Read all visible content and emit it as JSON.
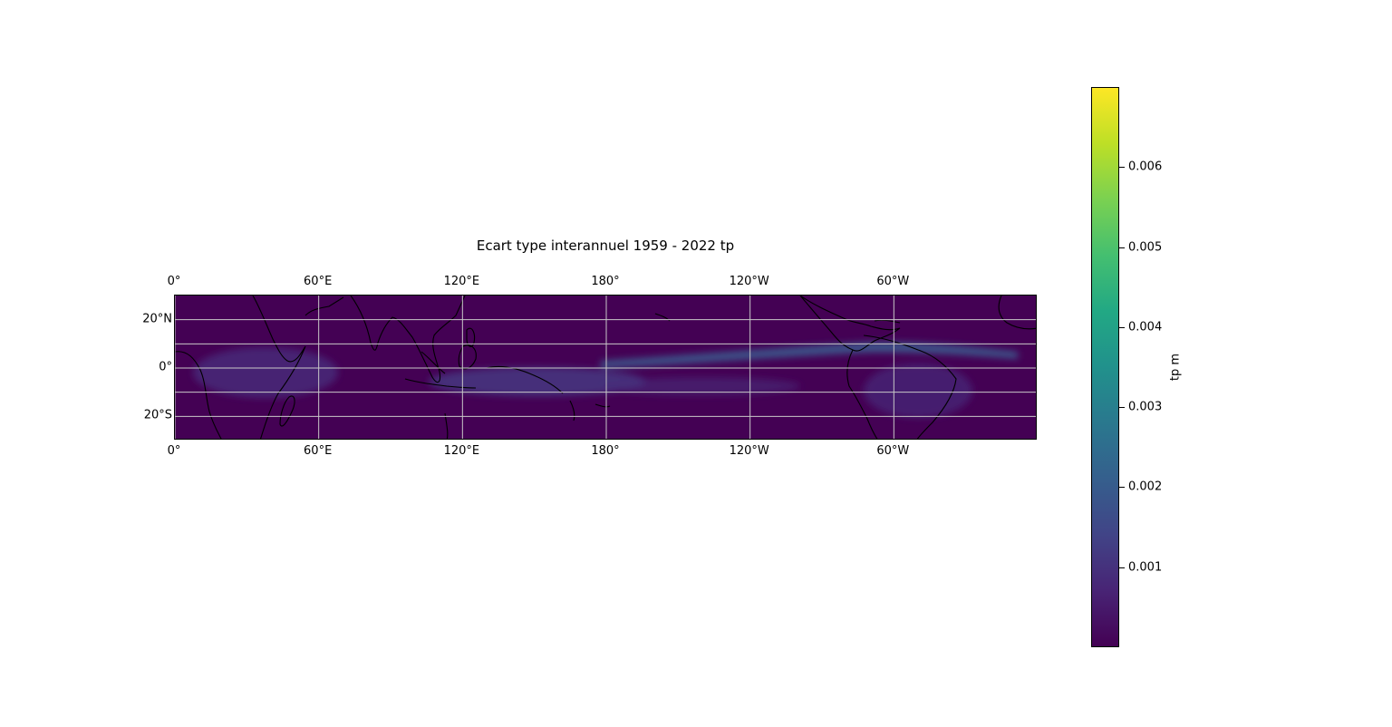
{
  "title": "Ecart type interannuel 1959 - 2022 tp",
  "map": {
    "projection": "PlateCarree",
    "lon_range": [
      0,
      360
    ],
    "lat_range": [
      -30,
      30
    ],
    "lon_ticks": [
      {
        "value": 0,
        "label": "0°"
      },
      {
        "value": 60,
        "label": "60°E"
      },
      {
        "value": 120,
        "label": "120°E"
      },
      {
        "value": 180,
        "label": "180°"
      },
      {
        "value": 240,
        "label": "120°W"
      },
      {
        "value": 300,
        "label": "60°W"
      }
    ],
    "lat_ticks": [
      {
        "value": 20,
        "label": "20°N"
      },
      {
        "value": 0,
        "label": "0°"
      },
      {
        "value": -20,
        "label": "20°S"
      }
    ],
    "gridline_lats": [
      20,
      10,
      0,
      -10,
      -20
    ],
    "gridline_color": "#c8c8c8",
    "coastline_color": "#000000",
    "colormap": "viridis",
    "base_color": "#440154",
    "itcz_color": "#3b5a8c"
  },
  "colorbar": {
    "label": "tp m",
    "min": 0,
    "max": 0.007,
    "ticks": [
      {
        "value": 0.001,
        "label": "0.001"
      },
      {
        "value": 0.002,
        "label": "0.002"
      },
      {
        "value": 0.003,
        "label": "0.003"
      },
      {
        "value": 0.004,
        "label": "0.004"
      },
      {
        "value": 0.005,
        "label": "0.005"
      },
      {
        "value": 0.006,
        "label": "0.006"
      }
    ]
  }
}
